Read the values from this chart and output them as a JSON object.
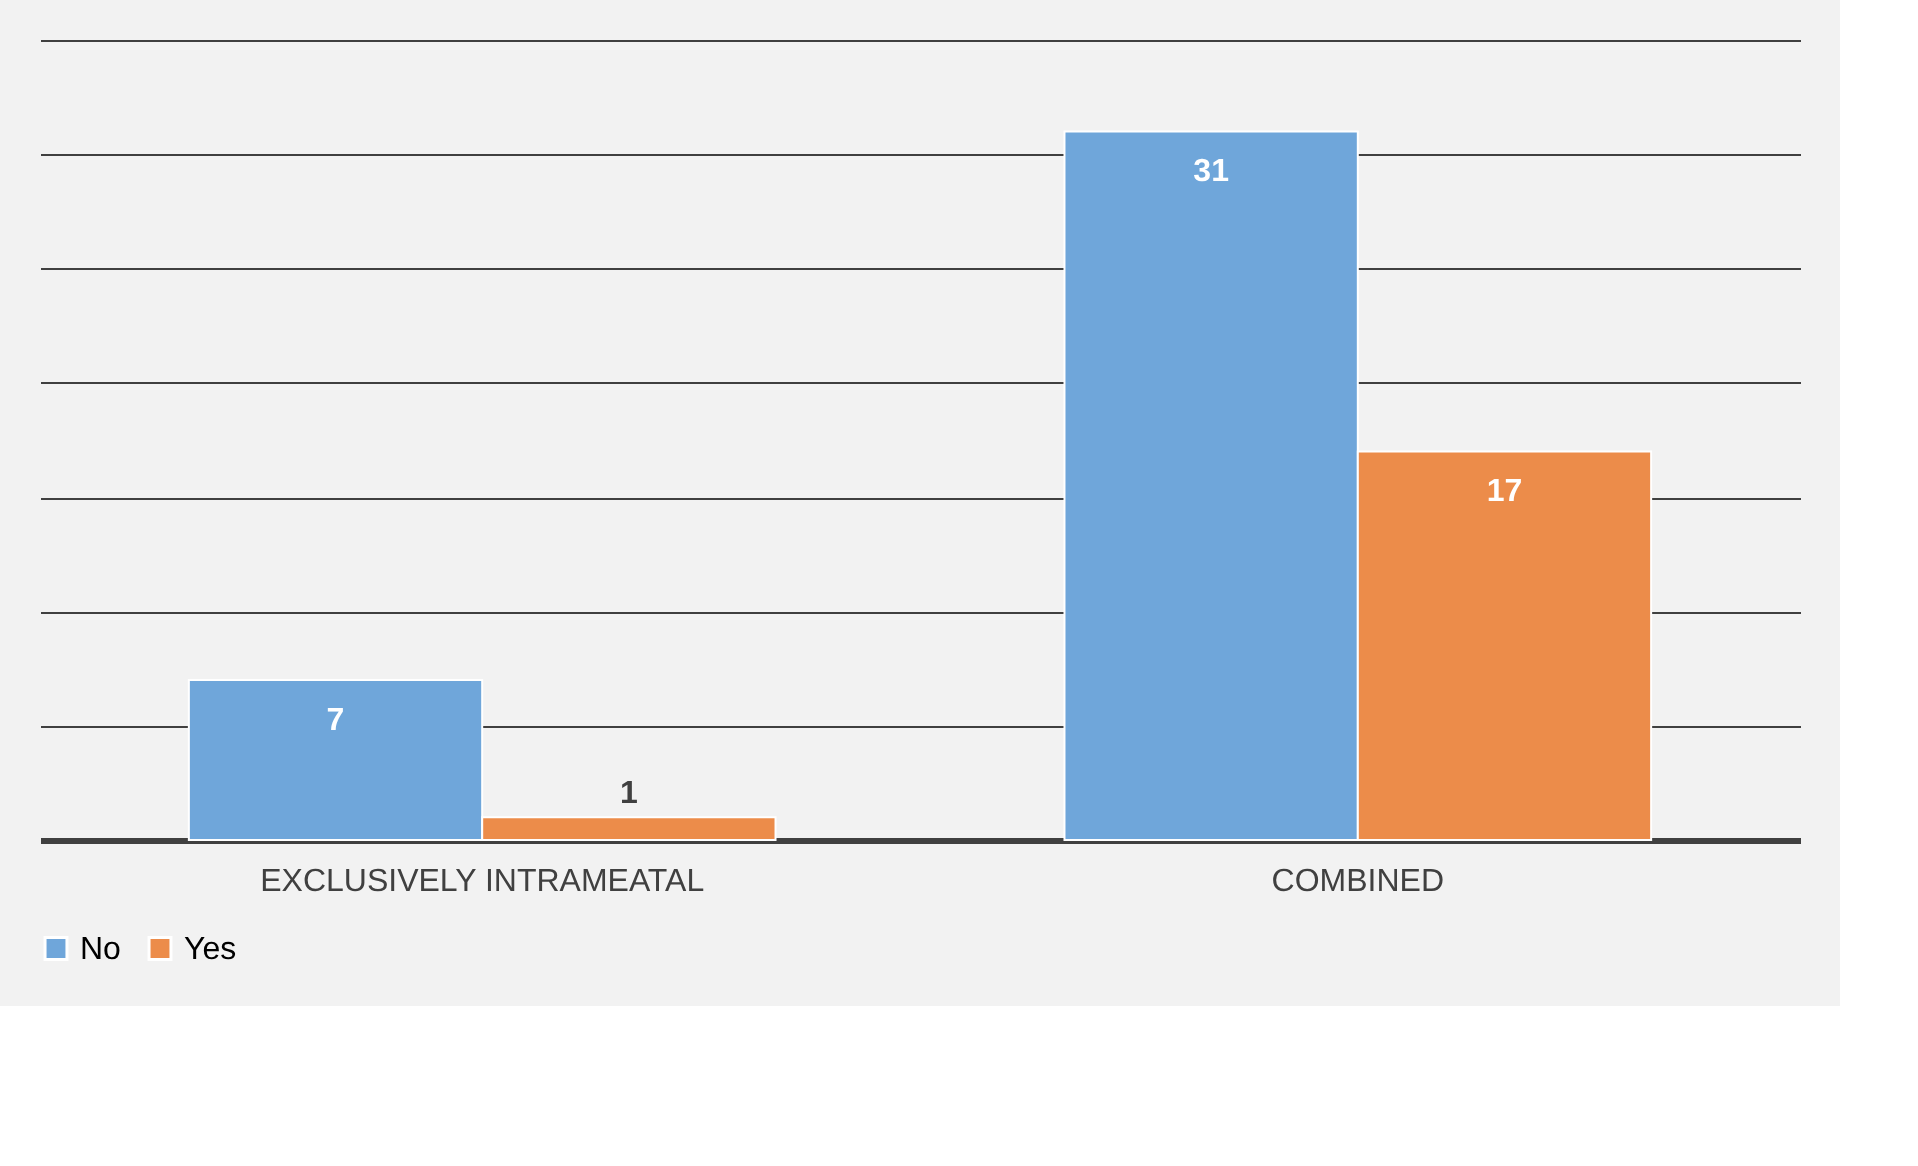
{
  "chart_data": {
    "type": "bar",
    "categories": [
      "EXCLUSIVELY INTRAMEATAL",
      "COMBINED"
    ],
    "series": [
      {
        "name": "No",
        "color": "#6fa6da",
        "values": [
          7,
          31
        ]
      },
      {
        "name": "Yes",
        "color": "#ec8c4a",
        "values": [
          1,
          17
        ]
      }
    ],
    "ylim": [
      0,
      35
    ],
    "yticks": [
      {
        "value": 0,
        "label": null
      },
      {
        "value": 5,
        "label": null
      },
      {
        "value": 10,
        "label": null
      },
      {
        "value": 15,
        "label": null
      },
      {
        "value": 20,
        "label": null
      },
      {
        "value": 25,
        "label": null
      },
      {
        "value": 30,
        "label": null
      },
      {
        "value": 35,
        "label": null
      }
    ],
    "tick_labels": "x",
    "grid": "y",
    "legend": "bottom",
    "data_labels": true
  }
}
